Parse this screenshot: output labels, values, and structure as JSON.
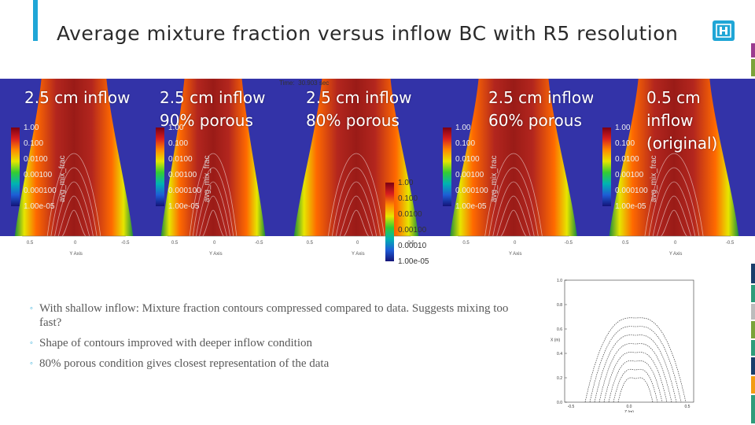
{
  "header": {
    "title": "Average mixture fraction versus inflow BC with R5 resolution",
    "logo_icon": "sandia-logo-icon",
    "accent_color": "#1fa6d6"
  },
  "figure": {
    "time_label": "Time:",
    "time_value": "30.903 sec",
    "colorbar_title": "avg_mix_frac",
    "panels": [
      {
        "label_lines": [
          "2.5 cm inflow"
        ],
        "ticks": [
          "1.00",
          "0.100",
          "0.0100",
          "0.00100",
          "0.000100",
          "1.00e-05"
        ]
      },
      {
        "label_lines": [
          "2.5 cm inflow",
          "90% porous"
        ],
        "ticks": [
          "1.00",
          "0.100",
          "0.0100",
          "0.00100",
          "0.000100",
          "1.00e-05"
        ]
      },
      {
        "label_lines": [
          "2.5 cm inflow",
          "80% porous"
        ],
        "ticks": [
          "1.00",
          "0.100",
          "0.0100",
          "0.00100",
          "0.00010",
          "1.00e-05"
        ]
      },
      {
        "label_lines": [
          "2.5 cm inflow",
          "60% porous"
        ],
        "ticks": [
          "1.00",
          "0.100",
          "0.0100",
          "0.00100",
          "0.000100",
          "1.00e-05"
        ]
      },
      {
        "label_lines": [
          "0.5 cm",
          "inflow",
          "(original)"
        ],
        "ticks": [
          "1.00",
          "0.100",
          "0.0100",
          "0.00100",
          "0.000100",
          "1.00e-05"
        ]
      }
    ],
    "axis_ticks": [
      "0.5",
      "0",
      "-0.5"
    ],
    "axis_title": "Y Axis"
  },
  "bullets": [
    "With shallow inflow: Mixture fraction contours compressed compared to data.  Suggests mixing too fast?",
    "Shape of contours improved with deeper inflow condition",
    "80% porous condition gives closest representation of the data"
  ],
  "bullet_icon": "circle-bullet-icon",
  "data_plot": {
    "y_ticks": [
      "1.0",
      "0.8",
      "0.6",
      "0.4",
      "0.2",
      "0.0"
    ],
    "x_ticks": [
      "-0.5",
      "0.0",
      "0.5"
    ],
    "x_label": "Z (m)",
    "y_label": "X (m)"
  }
}
